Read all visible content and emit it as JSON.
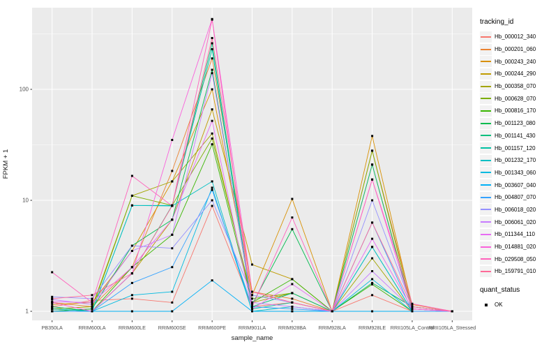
{
  "chart_data": {
    "type": "line",
    "xlabel": "sample_name",
    "ylabel": "FPKM + 1",
    "y_scale": "log10",
    "y_ticks": [
      1,
      10,
      100
    ],
    "y_minor_ticks": [
      3.162,
      31.62,
      316.2
    ],
    "ylim": [
      0.93,
      545
    ],
    "grid": true,
    "legend_position": "right",
    "point_marker": "filled-square",
    "point_color": "#000000",
    "x_categories": [
      "PB350LA",
      "RRIM600LA",
      "RRIM600LE",
      "RRIM600SE",
      "RRIM600PE",
      "RRIM901LA",
      "RRIM928BA",
      "RRIM928LA",
      "RRIM928LE",
      "RRII105LA_Control",
      "RRII105LA_Stressed"
    ],
    "series": [
      {
        "name": "Hb_000012_340",
        "color": "#F8766D",
        "values": [
          1.1,
          1.25,
          1.3,
          1.2,
          8.9,
          1.1,
          1.2,
          1.0,
          1.4,
          1.0,
          1.0
        ]
      },
      {
        "name": "Hb_000201_060",
        "color": "#EA8331",
        "values": [
          1.2,
          1.1,
          2.5,
          18.4,
          190,
          1.5,
          1.3,
          1.0,
          28.0,
          1.15,
          1.0
        ]
      },
      {
        "name": "Hb_000243_240",
        "color": "#D89000",
        "values": [
          1.15,
          1.2,
          3.5,
          14.8,
          100,
          1.4,
          10.3,
          1.0,
          38.0,
          1.1,
          1.0
        ]
      },
      {
        "name": "Hb_000244_290",
        "color": "#C09B00",
        "values": [
          1.1,
          1.0,
          2.2,
          6.7,
          66,
          2.64,
          1.95,
          1.0,
          21.0,
          1.05,
          1.0
        ]
      },
      {
        "name": "Hb_000358_070",
        "color": "#A3A500",
        "values": [
          1.05,
          1.1,
          11.0,
          14.8,
          40,
          1.2,
          1.46,
          1.0,
          3.0,
          1.0,
          1.0
        ]
      },
      {
        "name": "Hb_000628_070",
        "color": "#7CAE00",
        "values": [
          1.0,
          1.05,
          11.0,
          9.0,
          36,
          1.3,
          1.46,
          1.0,
          28.0,
          1.05,
          1.0
        ]
      },
      {
        "name": "Hb_000816_170",
        "color": "#39B600",
        "values": [
          1.05,
          1.0,
          2.5,
          4.9,
          32,
          1.2,
          1.95,
          1.0,
          1.75,
          1.0,
          1.0
        ]
      },
      {
        "name": "Hb_001123_080",
        "color": "#00BB4E",
        "values": [
          1.0,
          1.05,
          3.9,
          6.7,
          150,
          1.15,
          5.5,
          1.0,
          1.8,
          1.1,
          1.0
        ]
      },
      {
        "name": "Hb_001141_430",
        "color": "#00BF7D",
        "values": [
          1.1,
          1.0,
          2.2,
          9.0,
          260,
          1.1,
          1.46,
          1.0,
          21.0,
          1.0,
          1.0
        ]
      },
      {
        "name": "Hb_001157_120",
        "color": "#00C1A3",
        "values": [
          1.0,
          1.0,
          9.0,
          9.0,
          230,
          1.05,
          1.2,
          1.0,
          3.8,
          1.0,
          1.0
        ]
      },
      {
        "name": "Hb_001232_170",
        "color": "#00BFC4",
        "values": [
          1.05,
          1.0,
          9.0,
          8.9,
          14.8,
          1.0,
          1.1,
          1.0,
          3.8,
          1.0,
          1.0
        ]
      },
      {
        "name": "Hb_001343_060",
        "color": "#00BAE0",
        "values": [
          1.0,
          1.0,
          1.4,
          1.5,
          13.0,
          1.0,
          1.0,
          1.0,
          1.95,
          1.0,
          1.0
        ]
      },
      {
        "name": "Hb_003607_040",
        "color": "#00B0F6",
        "values": [
          1.0,
          1.0,
          1.0,
          1.0,
          1.9,
          1.0,
          1.0,
          1.0,
          1.0,
          1.0,
          1.0
        ]
      },
      {
        "name": "Hb_004807_070",
        "color": "#35A2FF",
        "values": [
          1.0,
          1.0,
          1.8,
          2.5,
          12.4,
          1.1,
          1.05,
          1.0,
          6.3,
          1.0,
          1.0
        ]
      },
      {
        "name": "Hb_006018_020",
        "color": "#9590FF",
        "values": [
          1.35,
          1.3,
          3.9,
          3.7,
          10.0,
          1.4,
          1.2,
          1.0,
          10.0,
          1.1,
          1.0
        ]
      },
      {
        "name": "Hb_006061_020",
        "color": "#C77CFF",
        "values": [
          1.28,
          1.15,
          3.5,
          4.9,
          140,
          1.2,
          1.1,
          1.0,
          2.3,
          1.05,
          1.0
        ]
      },
      {
        "name": "Hb_011344_110",
        "color": "#E76BF3",
        "values": [
          1.22,
          1.2,
          2.5,
          6.7,
          52,
          1.05,
          1.76,
          1.0,
          4.5,
          1.05,
          1.0
        ]
      },
      {
        "name": "Hb_014881_020",
        "color": "#FA62DB",
        "values": [
          1.2,
          1.0,
          2.2,
          35.0,
          430,
          1.5,
          1.2,
          1.0,
          15.4,
          1.05,
          1.0
        ]
      },
      {
        "name": "Hb_029508_050",
        "color": "#FF62BC",
        "values": [
          2.25,
          1.2,
          16.6,
          8.9,
          425,
          1.1,
          7.0,
          1.0,
          15.4,
          1.17,
          1.0
        ]
      },
      {
        "name": "Hb_159791_010",
        "color": "#FF6A98",
        "values": [
          1.3,
          1.4,
          2.2,
          8.9,
          290,
          1.5,
          1.2,
          1.0,
          6.3,
          1.1,
          1.0
        ]
      }
    ]
  },
  "legend": {
    "color_title": "tracking_id",
    "shape_title": "quant_status",
    "shape_items": [
      {
        "label": "OK",
        "marker": "filled-square",
        "color": "#000000"
      }
    ]
  },
  "panel": {
    "background": "#EBEBEB",
    "grid_color": "#FFFFFF",
    "tick_label_color": "#4D4D4D",
    "axis_title_color": "#1A1A1A",
    "tick_mark_color": "#333333"
  }
}
